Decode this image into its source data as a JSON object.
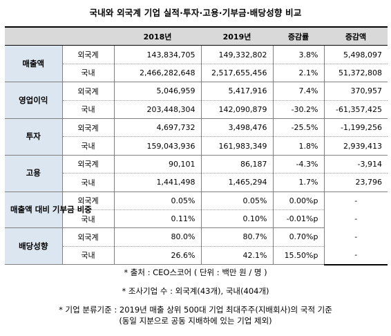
{
  "title": "국내와 외국계 기업 실적·투자·고용·기부금·배당성향 비교",
  "columns": [
    "",
    "",
    "2018년",
    "2019년",
    "증감률",
    "증감액"
  ],
  "groups": [
    {
      "label": "매출액",
      "rows": [
        {
          "sub": "외국계",
          "y2018": "143,834,705",
          "y2019": "149,332,802",
          "rate": "3.8%",
          "amount": "5,498,097"
        },
        {
          "sub": "국내",
          "y2018": "2,466,282,648",
          "y2019": "2,517,655,456",
          "rate": "2.1%",
          "amount": "51,372,808"
        }
      ]
    },
    {
      "label": "영업이익",
      "rows": [
        {
          "sub": "외국계",
          "y2018": "5,046,959",
          "y2019": "5,417,916",
          "rate": "7.4%",
          "amount": "370,957"
        },
        {
          "sub": "국내",
          "y2018": "203,448,304",
          "y2019": "142,090,879",
          "rate": "-30.2%",
          "amount": "-61,357,425"
        }
      ]
    },
    {
      "label": "투자",
      "rows": [
        {
          "sub": "외국계",
          "y2018": "4,697,732",
          "y2019": "3,498,476",
          "rate": "-25.5%",
          "amount": "-1,199,256"
        },
        {
          "sub": "국내",
          "y2018": "159,043,936",
          "y2019": "161,983,349",
          "rate": "1.8%",
          "amount": "2,939,413"
        }
      ]
    },
    {
      "label": "고용",
      "rows": [
        {
          "sub": "외국계",
          "y2018": "90,101",
          "y2019": "86,187",
          "rate": "-4.3%",
          "amount": "-3,914"
        },
        {
          "sub": "국내",
          "y2018": "1,441,498",
          "y2019": "1,465,294",
          "rate": "1.7%",
          "amount": "23,796"
        }
      ]
    },
    {
      "label": "매출액 대비 기부금 비중",
      "rows": [
        {
          "sub": "외국계",
          "y2018": "0.05%",
          "y2019": "0.05%",
          "rate": "0.00%p",
          "amount": "-"
        },
        {
          "sub": "국내",
          "y2018": "0.11%",
          "y2019": "0.10%",
          "rate": "-0.01%p",
          "amount": "-"
        }
      ]
    },
    {
      "label": "배당성향",
      "rows": [
        {
          "sub": "외국계",
          "y2018": "80.0%",
          "y2019": "80.7%",
          "rate": "0.70%p",
          "amount": "-"
        },
        {
          "sub": "국내",
          "y2018": "26.6%",
          "y2019": "42.1%",
          "rate": "15.50%p",
          "amount": "-"
        }
      ]
    }
  ],
  "notes": {
    "source": "* 출처 : CEO스코어 ( 단위 : 백만 원 / 명 )",
    "sample": "* 조사기업 수 : 외국계(43개), 국내(404개)",
    "criteria_1": "* 기업 분류기준 : 2019년 매출 상위 500대 기업 최대주주(지배회사)의 국적 기준",
    "criteria_2": "(동일 지분으로 공동 지배하에 있는 기업 제외)"
  }
}
